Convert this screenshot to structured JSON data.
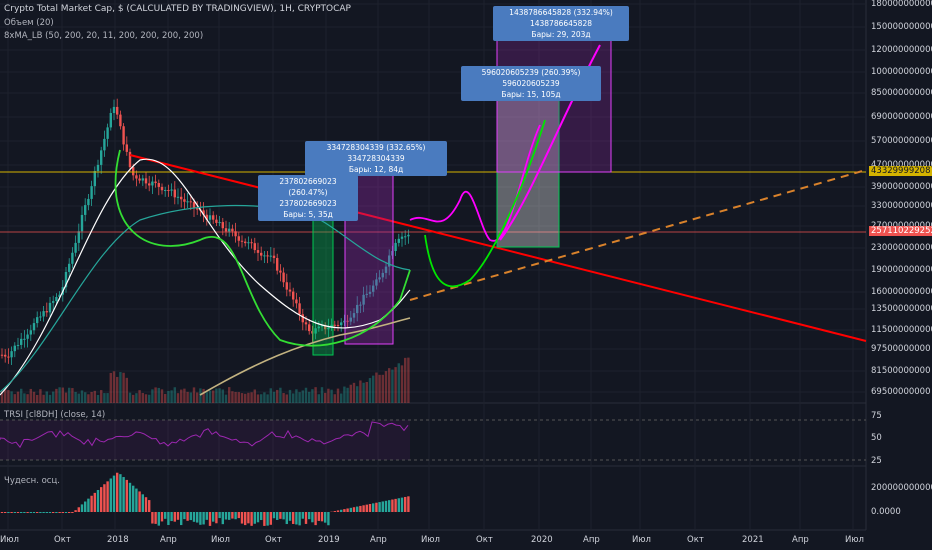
{
  "header": {
    "title": "Crypto Total Market Cap, $ (CALCULATED BY TRADINGVIEW), 1H, CRYPTOCAP",
    "volume_label": "Объем (20)",
    "ma_label": "8xMA_LB (50, 200, 20, 11, 200, 200, 200, 200)"
  },
  "rsi_panel": {
    "label": "TRSI [cl8DH] (close, 14)",
    "ticks": [
      "75",
      "50",
      "25"
    ]
  },
  "ao_panel": {
    "label": "Чудесн. осц.",
    "ticks": [
      "2000000000000.000",
      "0.0000"
    ]
  },
  "price_axis": {
    "ticks": [
      "1800000000000",
      "1500000000000",
      "1200000000000",
      "1000000000000",
      "850000000000",
      "690000000000",
      "570000000000",
      "470000000000",
      "390000000000",
      "330000000000",
      "270000000000",
      "230000000000",
      "190000000000",
      "160000000000",
      "135000000000",
      "115000000000",
      "97500000000",
      "81500000000",
      "69500000000"
    ],
    "current_price": "257110229252",
    "level_price": "433299992087"
  },
  "time_axis": {
    "ticks": [
      "Июл",
      "Окт",
      "2018",
      "Апр",
      "Июл",
      "Окт",
      "2019",
      "Апр",
      "Июл",
      "Окт",
      "2020",
      "Апр",
      "Июл",
      "Окт",
      "2021",
      "Апр",
      "Июл"
    ]
  },
  "annotations": [
    {
      "line1": "237802669023 (260.47%) 237802669023",
      "line2": "Бары: 5, 35д"
    },
    {
      "line1": "334728304339 (332.65%) 334728304339",
      "line2": "Бары: 12, 84д"
    },
    {
      "line1": "596020605239 (260.39%) 596020605239",
      "line2": "Бары: 15, 105д"
    },
    {
      "line1": "1438786645828 (332.94%) 1438786645828",
      "line2": "Бары: 29, 203д"
    }
  ],
  "colors": {
    "background": "#131722",
    "up": "#26a69a",
    "down": "#ef5350",
    "trendline": "#ff0000",
    "level": "#d4b300",
    "projection_pink": "#ff00ff",
    "projection_green": "#00e600",
    "dashed": "#d9822b",
    "tooltip": "#4a7bbf"
  },
  "chart_data": {
    "type": "line",
    "title": "Crypto Total Market Cap, $ (CALCULATED BY TRADINGVIEW), 1H, CRYPTOCAP",
    "price_close": [
      {
        "x": "2017-07",
        "y": 95000000000
      },
      {
        "x": "2017-10",
        "y": 160000000000
      },
      {
        "x": "2018-01",
        "y": 780000000000
      },
      {
        "x": "2018-02",
        "y": 430000000000
      },
      {
        "x": "2018-04",
        "y": 380000000000
      },
      {
        "x": "2018-07",
        "y": 280000000000
      },
      {
        "x": "2018-10",
        "y": 210000000000
      },
      {
        "x": "2018-12",
        "y": 115000000000
      },
      {
        "x": "2019-02",
        "y": 125000000000
      },
      {
        "x": "2019-04",
        "y": 180000000000
      },
      {
        "x": "2019-05",
        "y": 257110229252
      }
    ],
    "ylim": [
      60000000000,
      1900000000000
    ],
    "scale": "log",
    "grid": true
  }
}
